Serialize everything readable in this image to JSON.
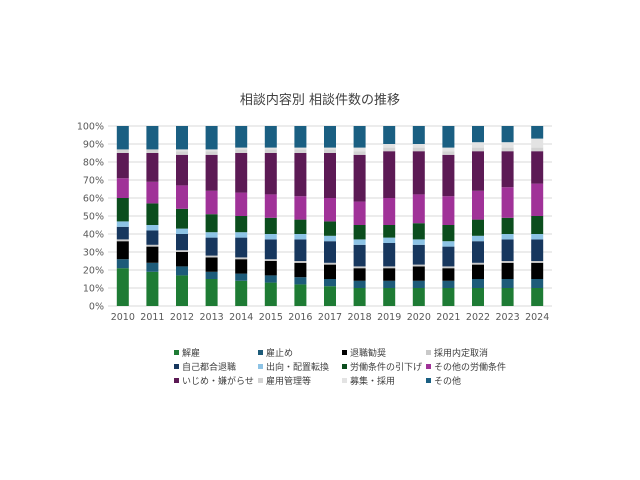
{
  "chart_data": {
    "type": "bar",
    "stacked": true,
    "percent": true,
    "title": "相談内容別 相談件数の推移",
    "xlabel": "",
    "ylabel": "",
    "ylim": [
      0,
      100
    ],
    "yticks": [
      "0%",
      "10%",
      "20%",
      "30%",
      "40%",
      "50%",
      "60%",
      "70%",
      "80%",
      "90%",
      "100%"
    ],
    "grid": true,
    "legend_position": "bottom",
    "categories": [
      "2010",
      "2011",
      "2012",
      "2013",
      "2014",
      "2015",
      "2016",
      "2017",
      "2018",
      "2019",
      "2020",
      "2021",
      "2022",
      "2023",
      "2024"
    ],
    "series": [
      {
        "name": "解雇",
        "color": "#1e7b34",
        "values": [
          21,
          19,
          17,
          15,
          14,
          13,
          12,
          11,
          10,
          10,
          10,
          10,
          10,
          10,
          10
        ]
      },
      {
        "name": "雇止め",
        "color": "#1d5b79",
        "values": [
          5,
          5,
          5,
          4,
          4,
          4,
          4,
          4,
          4,
          4,
          4,
          4,
          5,
          5,
          5
        ]
      },
      {
        "name": "退職勧奨",
        "color": "#000000",
        "values": [
          10,
          9,
          8,
          8,
          8,
          8,
          8,
          8,
          7,
          7,
          8,
          7,
          8,
          9,
          9
        ]
      },
      {
        "name": "採用内定取消",
        "color": "#c9c9c9",
        "values": [
          1,
          1,
          1,
          1,
          1,
          1,
          1,
          1,
          1,
          1,
          1,
          1,
          1,
          1,
          1
        ]
      },
      {
        "name": "自己都合退職",
        "color": "#17375e",
        "values": [
          7,
          8,
          9,
          10,
          11,
          11,
          12,
          12,
          12,
          13,
          11,
          11,
          12,
          12,
          12
        ]
      },
      {
        "name": "出向・配置転換",
        "color": "#8dc3e5",
        "values": [
          3,
          3,
          3,
          3,
          3,
          3,
          3,
          3,
          3,
          3,
          3,
          3,
          3,
          3,
          3
        ]
      },
      {
        "name": "労働条件の引下げ",
        "color": "#0b4d1d",
        "values": [
          13,
          12,
          11,
          10,
          9,
          9,
          8,
          8,
          8,
          7,
          9,
          9,
          9,
          9,
          10
        ]
      },
      {
        "name": "その他の労働条件",
        "color": "#a03298",
        "values": [
          11,
          12,
          13,
          13,
          13,
          13,
          13,
          13,
          13,
          15,
          16,
          16,
          16,
          17,
          18
        ]
      },
      {
        "name": "いじめ・嫌がらせ",
        "color": "#5c1a55",
        "values": [
          14,
          16,
          17,
          20,
          22,
          23,
          24,
          25,
          26,
          26,
          24,
          23,
          22,
          20,
          18
        ]
      },
      {
        "name": "雇用管理等",
        "color": "#d3d3d3",
        "values": [
          2,
          2,
          2,
          2,
          2,
          2,
          2,
          2,
          2,
          2,
          2,
          2,
          2,
          2,
          2
        ]
      },
      {
        "name": "募集・採用",
        "color": "#e3e3e3",
        "values": [
          0,
          0,
          1,
          1,
          1,
          1,
          1,
          1,
          2,
          2,
          2,
          2,
          3,
          3,
          5
        ]
      },
      {
        "name": "その他",
        "color": "#1a5f82",
        "values": [
          13,
          13,
          13,
          13,
          12,
          12,
          12,
          12,
          12,
          10,
          10,
          12,
          9,
          9,
          7
        ]
      }
    ]
  }
}
